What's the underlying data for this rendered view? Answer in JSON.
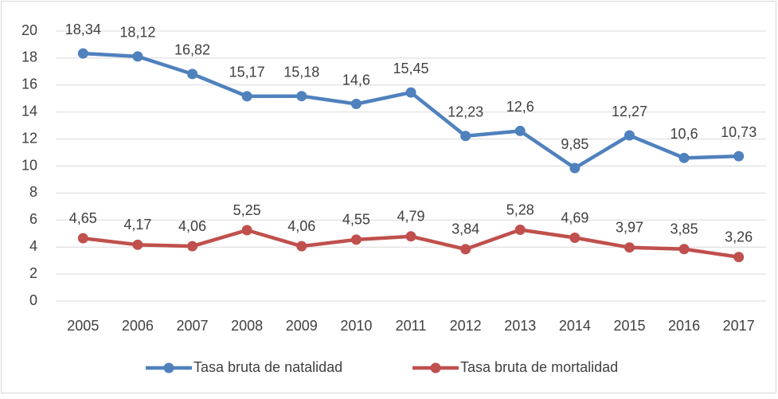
{
  "chart_data": {
    "type": "line",
    "categories": [
      "2005",
      "2006",
      "2007",
      "2008",
      "2009",
      "2010",
      "2011",
      "2012",
      "2013",
      "2014",
      "2015",
      "2016",
      "2017"
    ],
    "series": [
      {
        "name": "Tasa bruta de natalidad",
        "color": "#4f81bd",
        "values": [
          18.34,
          18.12,
          16.82,
          15.17,
          15.18,
          14.6,
          15.45,
          12.23,
          12.6,
          9.85,
          12.27,
          10.6,
          10.73
        ],
        "value_labels": [
          "18,34",
          "18,12",
          "16,82",
          "15,17",
          "15,18",
          "14,6",
          "15,45",
          "12,23",
          "12,6",
          "9,85",
          "12,27",
          "10,6",
          "10,73"
        ]
      },
      {
        "name": "Tasa bruta de mortalidad",
        "color": "#c0504d",
        "values": [
          4.65,
          4.17,
          4.06,
          5.25,
          4.06,
          4.55,
          4.79,
          3.84,
          5.28,
          4.69,
          3.97,
          3.85,
          3.26
        ],
        "value_labels": [
          "4,65",
          "4,17",
          "4,06",
          "5,25",
          "4,06",
          "4,55",
          "4,79",
          "3,84",
          "5,28",
          "4,69",
          "3,97",
          "3,85",
          "3,26"
        ]
      }
    ],
    "ylim": [
      0,
      20
    ],
    "yticks": [
      0,
      2,
      4,
      6,
      8,
      10,
      12,
      14,
      16,
      18,
      20
    ],
    "grid": true,
    "legend": "bottom"
  }
}
